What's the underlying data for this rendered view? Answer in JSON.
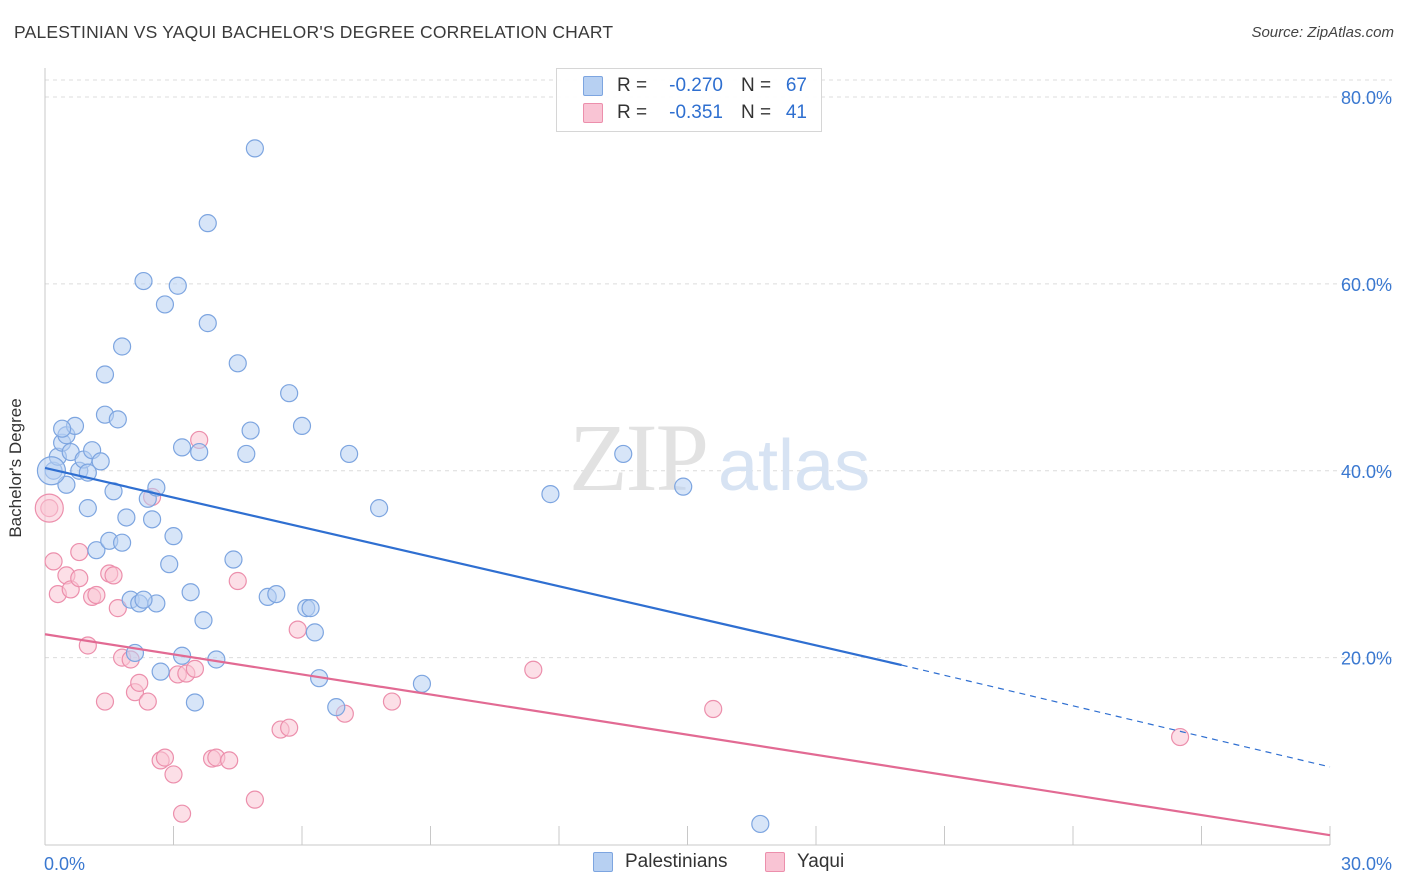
{
  "header": {
    "title": "PALESTINIAN VS YAQUI BACHELOR'S DEGREE CORRELATION CHART",
    "source": "Source: ZipAtlas.com"
  },
  "watermark": {
    "zip": "ZIP",
    "atlas": "atlas"
  },
  "legend": {
    "r_label": "R =",
    "n_label": "N =",
    "rows": [
      {
        "series": "Palestinians",
        "r": "-0.270",
        "n": "67",
        "fill": "#b7d0f2",
        "stroke": "#7da5e0"
      },
      {
        "series": "Yaqui",
        "r": "-0.351",
        "n": "41",
        "fill": "#f9c4d4",
        "stroke": "#ec8fac"
      }
    ]
  },
  "chart_data": {
    "type": "scatter",
    "title": "PALESTINIAN VS YAQUI BACHELOR'S DEGREE CORRELATION CHART",
    "xlabel": "",
    "ylabel": "Bachelor's Degree",
    "xlim": [
      0,
      30
    ],
    "ylim": [
      0,
      80
    ],
    "x_ticks": [
      "0.0%",
      "30.0%"
    ],
    "y_ticks": [
      {
        "value": 20,
        "label": "20.0%"
      },
      {
        "value": 40,
        "label": "40.0%"
      },
      {
        "value": 60,
        "label": "60.0%"
      },
      {
        "value": 80,
        "label": "80.0%"
      }
    ],
    "series": [
      {
        "name": "Palestinians",
        "color": "#5b8fd8",
        "fill": "#b7d0f2",
        "trendline": {
          "x0": 0,
          "y0": 40.3,
          "x1": 20.0,
          "y1": 19.2,
          "dashed_to_x": 30,
          "dashed_to_y": 8.3
        },
        "points": [
          [
            0.2,
            40.0
          ],
          [
            0.3,
            41.5
          ],
          [
            0.4,
            43.0
          ],
          [
            0.5,
            43.8
          ],
          [
            0.5,
            38.5
          ],
          [
            0.6,
            42.0
          ],
          [
            0.7,
            44.8
          ],
          [
            0.8,
            40.0
          ],
          [
            0.9,
            41.2
          ],
          [
            1.0,
            39.8
          ],
          [
            1.0,
            36.0
          ],
          [
            1.1,
            42.2
          ],
          [
            1.2,
            31.5
          ],
          [
            1.3,
            41.0
          ],
          [
            1.4,
            50.3
          ],
          [
            1.4,
            46.0
          ],
          [
            1.5,
            32.5
          ],
          [
            1.6,
            37.8
          ],
          [
            1.7,
            45.5
          ],
          [
            1.8,
            53.3
          ],
          [
            1.8,
            32.3
          ],
          [
            1.9,
            35.0
          ],
          [
            2.0,
            26.2
          ],
          [
            2.1,
            20.5
          ],
          [
            2.2,
            25.8
          ],
          [
            2.3,
            60.3
          ],
          [
            2.4,
            37.0
          ],
          [
            2.5,
            34.8
          ],
          [
            2.6,
            38.2
          ],
          [
            2.6,
            25.8
          ],
          [
            2.7,
            18.5
          ],
          [
            2.8,
            57.8
          ],
          [
            2.9,
            30.0
          ],
          [
            3.0,
            33.0
          ],
          [
            3.1,
            59.8
          ],
          [
            3.2,
            42.5
          ],
          [
            3.2,
            20.2
          ],
          [
            3.4,
            27.0
          ],
          [
            3.5,
            15.2
          ],
          [
            3.6,
            42.0
          ],
          [
            3.7,
            24.0
          ],
          [
            3.8,
            55.8
          ],
          [
            3.8,
            66.5
          ],
          [
            4.0,
            19.8
          ],
          [
            4.4,
            30.5
          ],
          [
            4.5,
            51.5
          ],
          [
            4.7,
            41.8
          ],
          [
            4.8,
            44.3
          ],
          [
            4.9,
            74.5
          ],
          [
            5.2,
            26.5
          ],
          [
            5.4,
            26.8
          ],
          [
            5.7,
            48.3
          ],
          [
            6.0,
            44.8
          ],
          [
            6.1,
            25.3
          ],
          [
            6.2,
            25.3
          ],
          [
            6.3,
            22.7
          ],
          [
            6.4,
            17.8
          ],
          [
            6.8,
            14.7
          ],
          [
            7.1,
            41.8
          ],
          [
            7.8,
            36.0
          ],
          [
            8.8,
            17.2
          ],
          [
            11.8,
            37.5
          ],
          [
            13.5,
            41.8
          ],
          [
            14.9,
            38.3
          ],
          [
            16.7,
            2.2
          ],
          [
            0.4,
            44.5
          ],
          [
            2.3,
            26.2
          ]
        ]
      },
      {
        "name": "Yaqui",
        "color": "#e26a93",
        "fill": "#f9c4d4",
        "trendline": {
          "x0": 0,
          "y0": 22.5,
          "x1": 30,
          "y1": 1.0
        },
        "points": [
          [
            0.1,
            36.0
          ],
          [
            0.2,
            30.3
          ],
          [
            0.3,
            26.8
          ],
          [
            0.5,
            28.8
          ],
          [
            0.6,
            27.3
          ],
          [
            0.8,
            31.3
          ],
          [
            0.8,
            28.5
          ],
          [
            1.0,
            21.3
          ],
          [
            1.1,
            26.5
          ],
          [
            1.2,
            26.7
          ],
          [
            1.4,
            15.3
          ],
          [
            1.5,
            29.0
          ],
          [
            1.6,
            28.8
          ],
          [
            1.7,
            25.3
          ],
          [
            1.8,
            20.0
          ],
          [
            2.0,
            19.8
          ],
          [
            2.1,
            16.3
          ],
          [
            2.2,
            17.3
          ],
          [
            2.4,
            15.3
          ],
          [
            2.5,
            37.2
          ],
          [
            2.7,
            9.0
          ],
          [
            2.8,
            9.3
          ],
          [
            3.0,
            7.5
          ],
          [
            3.1,
            18.2
          ],
          [
            3.2,
            3.3
          ],
          [
            3.3,
            18.3
          ],
          [
            3.5,
            18.8
          ],
          [
            3.6,
            43.3
          ],
          [
            3.9,
            9.2
          ],
          [
            4.0,
            9.3
          ],
          [
            4.3,
            9.0
          ],
          [
            4.5,
            28.2
          ],
          [
            4.9,
            4.8
          ],
          [
            5.5,
            12.3
          ],
          [
            5.7,
            12.5
          ],
          [
            5.9,
            23.0
          ],
          [
            7.0,
            14.0
          ],
          [
            8.1,
            15.3
          ],
          [
            11.4,
            18.7
          ],
          [
            15.6,
            14.5
          ],
          [
            26.5,
            11.5
          ]
        ]
      }
    ]
  }
}
